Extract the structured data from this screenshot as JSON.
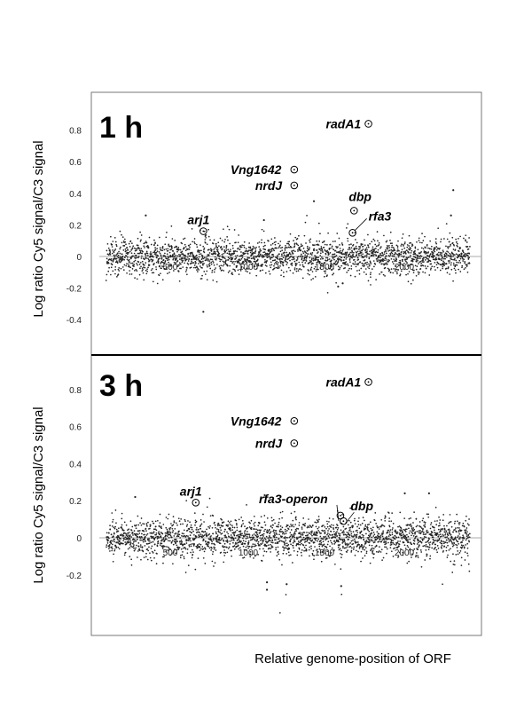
{
  "chart_data": [
    {
      "type": "scatter",
      "title": "1 h",
      "ylabel": "Log ratio Cy5 signal/C3 signal",
      "xlabel": "",
      "xlim": [
        0,
        2500
      ],
      "ylim": [
        -0.6,
        1.0
      ],
      "x_ticks": [
        "500",
        "1000",
        "1500",
        "2000"
      ],
      "y_ticks": [
        "0.8",
        "0.6",
        "0.4",
        "0.2",
        "0",
        "-0.2",
        "-0.4"
      ],
      "grid": false,
      "background_points": {
        "count": 2400,
        "x_range": [
          0,
          2400
        ],
        "center": 0.0,
        "spread": 0.1
      },
      "outliers": [
        {
          "x": 1530,
          "y": -0.19
        },
        {
          "x": 1370,
          "y": 0.35
        },
        {
          "x": 2290,
          "y": 0.42
        },
        {
          "x": 2275,
          "y": 0.26
        },
        {
          "x": 640,
          "y": -0.35
        },
        {
          "x": 1040,
          "y": 0.23
        },
        {
          "x": 260,
          "y": 0.26
        },
        {
          "x": 1560,
          "y": -0.17
        }
      ],
      "annotations": [
        {
          "label": "radA1",
          "x": 1730,
          "y": 0.84
        },
        {
          "label": "Vng1642",
          "x": 1240,
          "y": 0.55
        },
        {
          "label": "nrdJ",
          "x": 1240,
          "y": 0.45
        },
        {
          "label": "dbp",
          "x": 1635,
          "y": 0.29
        },
        {
          "label": "rfa3",
          "x": 1625,
          "y": 0.15
        },
        {
          "label": "arj1",
          "x": 640,
          "y": 0.16
        }
      ]
    },
    {
      "type": "scatter",
      "title": "3 h",
      "ylabel": "Log ratio Cy5 signal/C3 signal",
      "xlabel": "Relative genome-position of ORF",
      "xlim": [
        0,
        2500
      ],
      "ylim": [
        -0.4,
        1.0
      ],
      "x_ticks": [
        "500",
        "1000",
        "1500",
        "2000"
      ],
      "y_ticks": [
        "0.8",
        "0.6",
        "0.4",
        "0.2",
        "0",
        "-0.2"
      ],
      "grid": false,
      "background_points": {
        "count": 2400,
        "x_range": [
          0,
          2400
        ],
        "center": 0.0,
        "spread": 0.09
      },
      "outliers": [
        {
          "x": 1060,
          "y": -0.28
        },
        {
          "x": 1060,
          "y": -0.24
        },
        {
          "x": 1190,
          "y": -0.25
        },
        {
          "x": 1550,
          "y": -0.26
        },
        {
          "x": 1970,
          "y": 0.24
        },
        {
          "x": 2130,
          "y": 0.24
        },
        {
          "x": 190,
          "y": 0.22
        },
        {
          "x": 1045,
          "y": 0.23
        }
      ],
      "annotations": [
        {
          "label": "radA1",
          "x": 1730,
          "y": 0.84
        },
        {
          "label": "Vng1642",
          "x": 1240,
          "y": 0.63
        },
        {
          "label": "nrdJ",
          "x": 1240,
          "y": 0.51
        },
        {
          "label": "rfa3-operon",
          "x": 1545,
          "y": 0.12
        },
        {
          "label": "dbp",
          "x": 1565,
          "y": 0.09
        },
        {
          "label": "arj1",
          "x": 590,
          "y": 0.19
        }
      ]
    }
  ]
}
